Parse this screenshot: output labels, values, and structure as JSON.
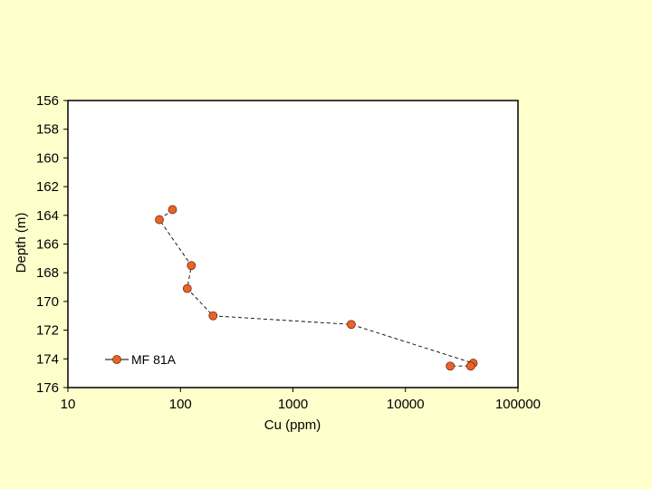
{
  "chart_data": {
    "type": "scatter",
    "title": "",
    "xlabel": "Cu (ppm)",
    "ylabel": "Depth (m)",
    "x_scale": "log",
    "xlim": [
      10,
      100000
    ],
    "ylim": [
      156,
      176
    ],
    "y_inverted": true,
    "x_ticks": [
      "10",
      "100",
      "1000",
      "10000",
      "100000"
    ],
    "y_ticks": [
      "156",
      "158",
      "160",
      "162",
      "164",
      "166",
      "168",
      "170",
      "172",
      "174",
      "176"
    ],
    "grid": false,
    "legend_position": "bottom-left",
    "series": [
      {
        "name": "MF 81A",
        "color": "#E8642A",
        "line_style": "dashed",
        "points": [
          {
            "x": 85,
            "y": 163.6
          },
          {
            "x": 65,
            "y": 164.3
          },
          {
            "x": 125,
            "y": 167.5
          },
          {
            "x": 115,
            "y": 169.1
          },
          {
            "x": 195,
            "y": 171.0
          },
          {
            "x": 3300,
            "y": 171.6
          },
          {
            "x": 40000,
            "y": 174.3
          },
          {
            "x": 38000,
            "y": 174.5
          },
          {
            "x": 25000,
            "y": 174.5
          }
        ]
      }
    ]
  }
}
